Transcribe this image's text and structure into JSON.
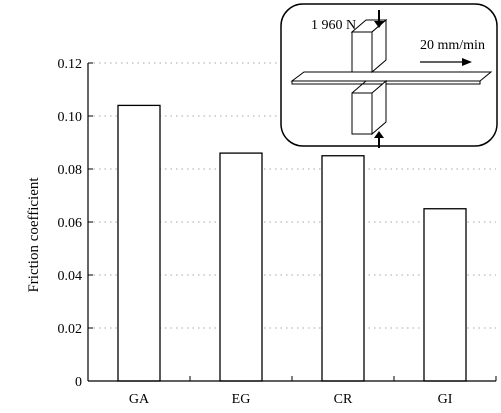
{
  "chart_data": {
    "type": "bar",
    "categories": [
      "GA",
      "EG",
      "CR",
      "GI"
    ],
    "values": [
      0.104,
      0.086,
      0.085,
      0.065
    ],
    "title": "",
    "xlabel": "",
    "ylabel": "Friction coefficient",
    "ylim": [
      0,
      0.12
    ],
    "yticks": [
      "0",
      "0.02",
      "0.04",
      "0.06",
      "0.08",
      "0.10",
      "0.12"
    ],
    "grid": "horizontal dotted"
  },
  "inset": {
    "load_label": "1 960 N",
    "speed_label": "20 mm/min"
  }
}
